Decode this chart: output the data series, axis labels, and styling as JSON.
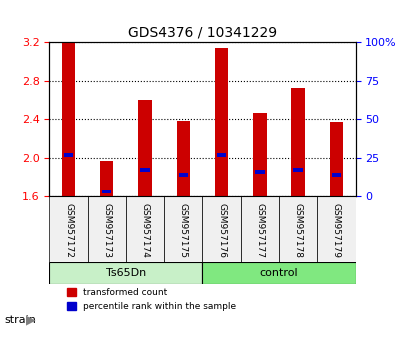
{
  "title": "GDS4376 / 10341229",
  "samples": [
    "GSM957172",
    "GSM957173",
    "GSM957174",
    "GSM957175",
    "GSM957176",
    "GSM957177",
    "GSM957178",
    "GSM957179"
  ],
  "red_values": [
    3.2,
    1.97,
    2.6,
    2.38,
    3.14,
    2.47,
    2.73,
    2.37
  ],
  "blue_values": [
    2.03,
    1.65,
    1.87,
    1.82,
    2.03,
    1.85,
    1.87,
    1.82
  ],
  "ylim": [
    1.6,
    3.2
  ],
  "yticks": [
    1.6,
    2.0,
    2.4,
    2.8,
    3.2
  ],
  "right_yticks": [
    0,
    25,
    50,
    75,
    100
  ],
  "right_yticklabels": [
    "0",
    "25",
    "50",
    "75",
    "100%"
  ],
  "groups": [
    {
      "label": "Ts65Dn",
      "indices": [
        0,
        1,
        2,
        3
      ],
      "color": "#c8f0c8"
    },
    {
      "label": "control",
      "indices": [
        4,
        5,
        6,
        7
      ],
      "color": "#80e880"
    }
  ],
  "bar_color": "#cc0000",
  "blue_color": "#0000cc",
  "bar_width": 0.35,
  "grid_color": "#000000",
  "bg_color": "#f0f0f0",
  "strain_label": "strain",
  "legend_red": "transformed count",
  "legend_blue": "percentile rank within the sample"
}
